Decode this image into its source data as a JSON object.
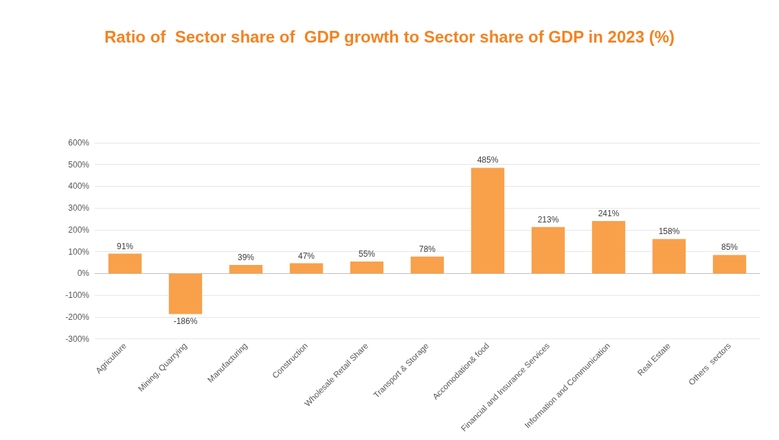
{
  "chart_data": {
    "type": "bar",
    "title": "Ratio of  Sector share of  GDP growth to Sector share of GDP in 2023 (%)",
    "categories": [
      "Agriculture",
      "Mining, Quarrying",
      "Manufacturing",
      "Construction",
      "Wholesale Retail Share",
      "Transport & Storage",
      "Accomodation& food",
      "Financial and Insurance Services",
      "Information and Communication",
      "Real Estate",
      "Others  sectors"
    ],
    "values": [
      91,
      -186,
      39,
      47,
      55,
      78,
      485,
      213,
      241,
      158,
      85
    ],
    "value_labels": [
      "91%",
      "-186%",
      "39%",
      "47%",
      "55%",
      "78%",
      "485%",
      "213%",
      "241%",
      "158%",
      "85%"
    ],
    "color": "#f9a04b",
    "ylim": [
      -300,
      600
    ],
    "yticks": [
      {
        "value": -300,
        "label": "-300%"
      },
      {
        "value": -200,
        "label": "-200%"
      },
      {
        "value": -100,
        "label": "-100%"
      },
      {
        "value": 0,
        "label": "0%"
      },
      {
        "value": 100,
        "label": "100%"
      },
      {
        "value": 200,
        "label": "200%"
      },
      {
        "value": 300,
        "label": "300%"
      },
      {
        "value": 400,
        "label": "400%"
      },
      {
        "value": 500,
        "label": "500%"
      },
      {
        "value": 600,
        "label": "600%"
      }
    ],
    "grid": "y"
  }
}
